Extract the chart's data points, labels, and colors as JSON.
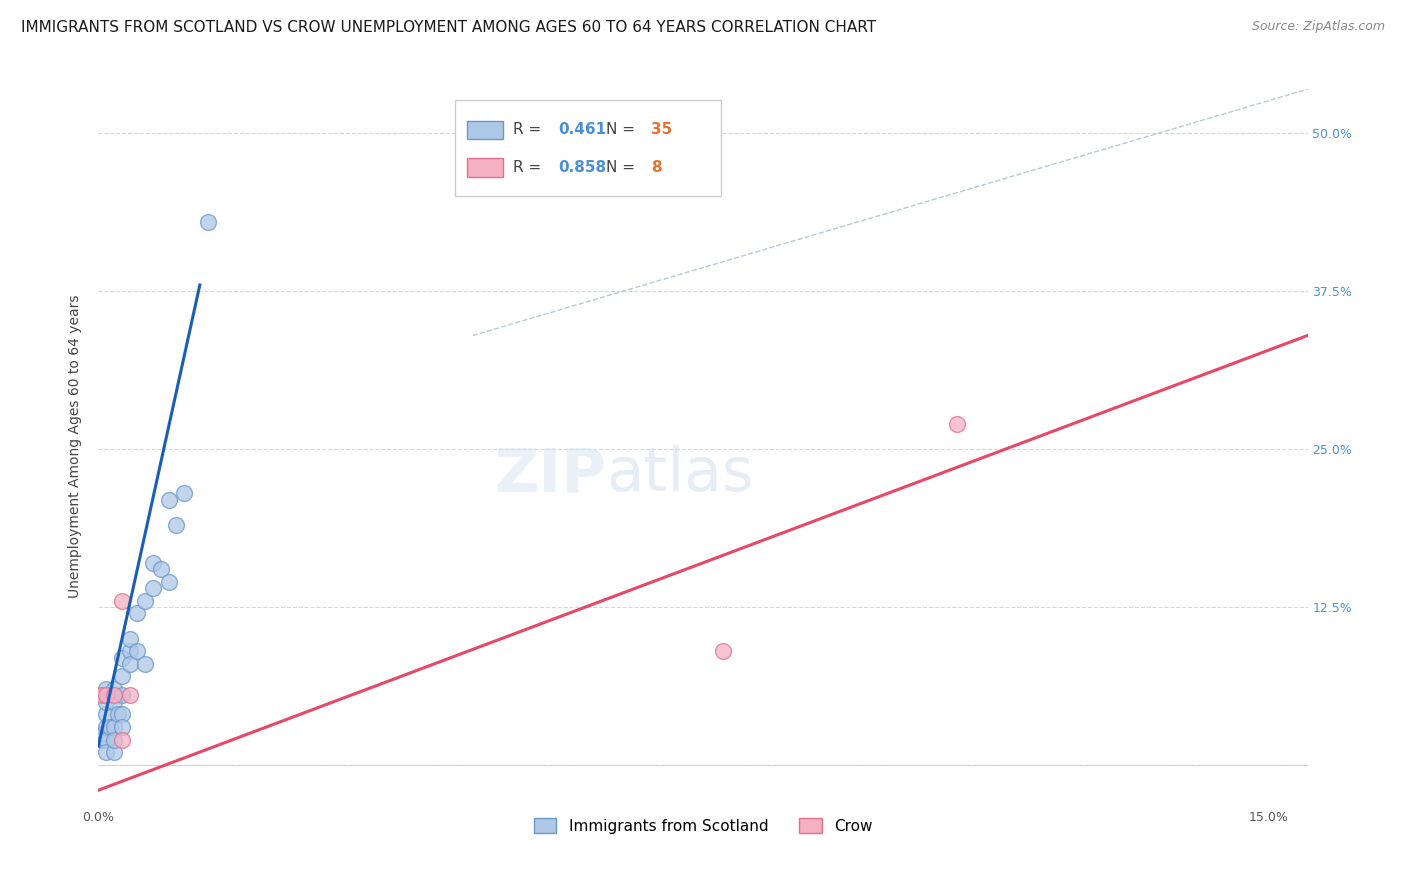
{
  "title": "IMMIGRANTS FROM SCOTLAND VS CROW UNEMPLOYMENT AMONG AGES 60 TO 64 YEARS CORRELATION CHART",
  "source": "Source: ZipAtlas.com",
  "ylabel": "Unemployment Among Ages 60 to 64 years",
  "xlim": [
    0.0,
    0.155
  ],
  "ylim": [
    -0.03,
    0.535
  ],
  "xticks": [
    0.0,
    0.03,
    0.06,
    0.09,
    0.12,
    0.15
  ],
  "xtick_labels": [
    "0.0%",
    "",
    "",
    "",
    "",
    "15.0%"
  ],
  "yticks": [
    0.0,
    0.125,
    0.25,
    0.375,
    0.5
  ],
  "ytick_labels_right": [
    "",
    "12.5%",
    "25.0%",
    "37.5%",
    "50.0%"
  ],
  "watermark_line1": "ZIP",
  "watermark_line2": "atlas",
  "legend_blue_r": "0.461",
  "legend_blue_n": "35",
  "legend_pink_r": "0.858",
  "legend_pink_n": "8",
  "scotland_x": [
    0.0005,
    0.0007,
    0.001,
    0.001,
    0.001,
    0.001,
    0.001,
    0.001,
    0.0015,
    0.002,
    0.002,
    0.002,
    0.002,
    0.002,
    0.0025,
    0.003,
    0.003,
    0.003,
    0.003,
    0.003,
    0.004,
    0.004,
    0.004,
    0.005,
    0.005,
    0.006,
    0.006,
    0.007,
    0.007,
    0.008,
    0.009,
    0.009,
    0.01,
    0.011,
    0.014
  ],
  "scotland_y": [
    0.02,
    0.025,
    0.03,
    0.04,
    0.05,
    0.06,
    0.02,
    0.01,
    0.03,
    0.01,
    0.03,
    0.05,
    0.06,
    0.02,
    0.04,
    0.04,
    0.055,
    0.07,
    0.085,
    0.03,
    0.09,
    0.1,
    0.08,
    0.12,
    0.09,
    0.13,
    0.08,
    0.14,
    0.16,
    0.155,
    0.21,
    0.145,
    0.19,
    0.215,
    0.43
  ],
  "crow_x": [
    0.0005,
    0.001,
    0.002,
    0.003,
    0.003,
    0.004,
    0.08,
    0.11
  ],
  "crow_y": [
    0.055,
    0.055,
    0.055,
    0.13,
    0.02,
    0.055,
    0.09,
    0.27
  ],
  "blue_line_x": [
    0.0,
    0.013
  ],
  "blue_line_y": [
    0.015,
    0.38
  ],
  "pink_line_x": [
    0.0,
    0.155
  ],
  "pink_line_y": [
    -0.02,
    0.34
  ],
  "diag_line_x": [
    0.048,
    0.155
  ],
  "diag_line_y": [
    0.34,
    0.535
  ],
  "scatter_color_blue": "#aec8e8",
  "scatter_edge_blue": "#6899c8",
  "scatter_color_pink": "#f5b0c2",
  "scatter_edge_pink": "#e07090",
  "line_color_blue": "#1a5eb8",
  "line_color_pink": "#e84868",
  "diag_color": "#b8c8e0",
  "title_fontsize": 11,
  "source_fontsize": 9,
  "ylabel_fontsize": 10,
  "scatter_size": 130
}
